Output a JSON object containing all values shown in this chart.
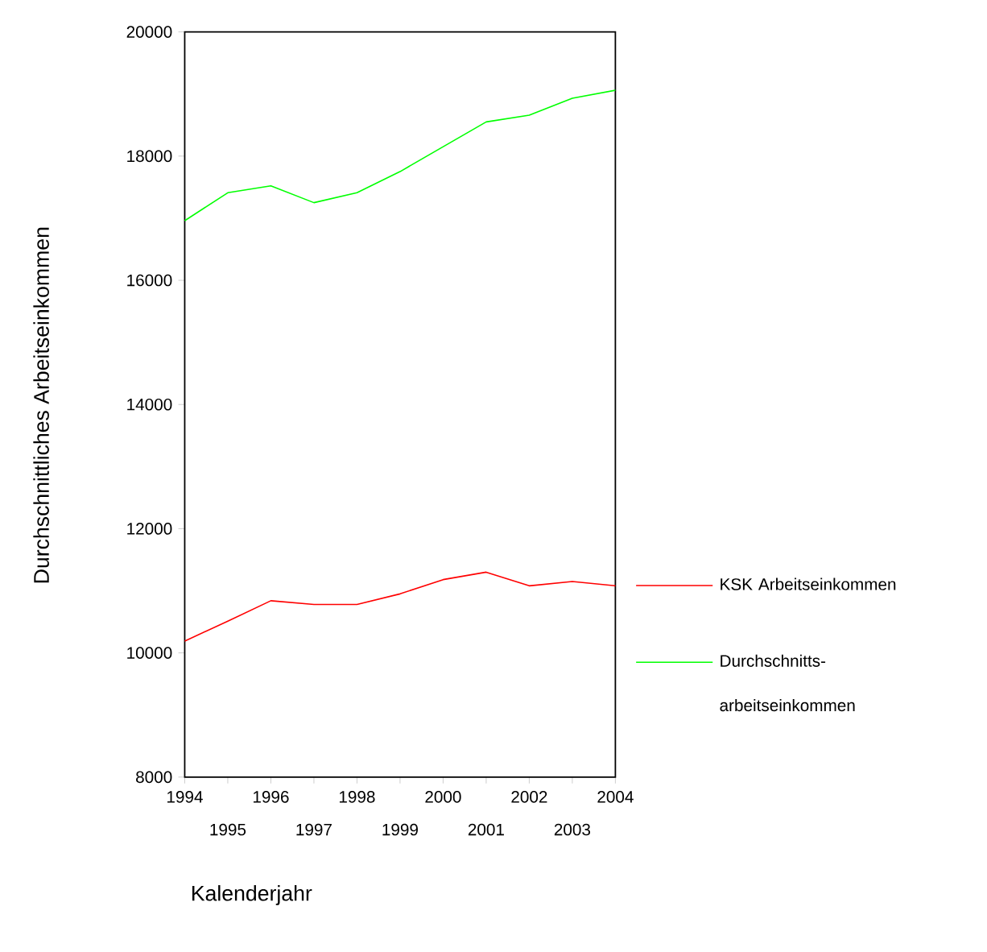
{
  "chart_data": {
    "type": "line",
    "xlabel": "Kalenderjahr",
    "ylabel": "Durchschnittliches Arbeitseinkommen",
    "x": [
      1994,
      1995,
      1996,
      1997,
      1998,
      1999,
      2000,
      2001,
      2002,
      2003,
      2004
    ],
    "series": [
      {
        "name": "KSK Arbeitseinkommen",
        "color": "#ff0000",
        "values": [
          10190,
          10510,
          10840,
          10780,
          10780,
          10950,
          11180,
          11300,
          11080,
          11150,
          11080
        ]
      },
      {
        "name": "Durchschnitts-arbeitseinkommen",
        "color": "#00ff00",
        "values": [
          16960,
          17410,
          17520,
          17250,
          17410,
          17750,
          18150,
          18550,
          18660,
          18930,
          19060
        ]
      }
    ],
    "xlim": [
      1994,
      2004
    ],
    "xticks": [
      1994,
      {
        "value": 1995,
        "label": null
      },
      1996,
      {
        "value": 1997,
        "label": null
      },
      1998,
      {
        "value": 1999,
        "label": null
      },
      2000,
      {
        "value": 2001,
        "label": null
      },
      2002,
      {
        "value": 2003,
        "label": null
      },
      2004
    ],
    "annotations": [
      "1995",
      "1997",
      "1999",
      "2001",
      "2003"
    ],
    "ylim": [
      8000,
      20000
    ],
    "yticks": [
      8000,
      10000,
      12000,
      14000,
      16000,
      18000,
      20000
    ],
    "grid": false,
    "legend": "right",
    "marker": "none",
    "line_style": "solid"
  }
}
